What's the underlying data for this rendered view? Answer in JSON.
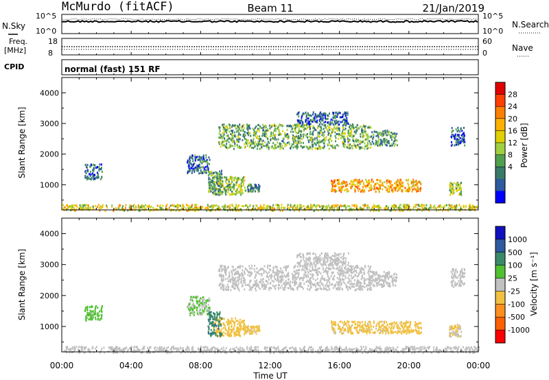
{
  "header": {
    "station": "McMurdo (fitACF)",
    "beam": "Beam 11",
    "date": "21/Jan/2019"
  },
  "nsky_panel": {
    "left_label": "N.Sky",
    "right_label": "N.Search",
    "left_ticks": [
      "10^5",
      "10^0"
    ],
    "right_ticks": [
      "10^5",
      "10^0"
    ]
  },
  "freq_panel": {
    "left_label_1": "Freq.",
    "left_label_2": "[MHz]",
    "left_ticks": [
      "18",
      "8"
    ],
    "right_label": "Nave",
    "right_ticks": [
      "60",
      "0"
    ]
  },
  "cpid_panel": {
    "label": "CPID",
    "text": "normal (fast) 151 RF"
  },
  "power_panel": {
    "ylabel": "Slant Range [km]",
    "yticks": [
      "4000",
      "3000",
      "2000",
      "1000"
    ],
    "colorbar_label": "Power [dB]",
    "colorbar_ticks": [
      "28",
      "24",
      "20",
      "16",
      "12",
      "8",
      "4"
    ],
    "colorbar_colors": [
      "#e00000",
      "#ff4000",
      "#ff8000",
      "#ffb000",
      "#e0d000",
      "#a0d040",
      "#50a050",
      "#3a7a6a",
      "#2e5aa0",
      "#0000ff"
    ]
  },
  "velocity_panel": {
    "ylabel": "Slant Range [km]",
    "yticks": [
      "4000",
      "3000",
      "2000",
      "1000"
    ],
    "colorbar_label": "Velocity [m s⁻¹]",
    "colorbar_ticks": [
      "1000",
      "500",
      "100",
      "25",
      "-25",
      "-100",
      "-500",
      "-1000"
    ],
    "colorbar_colors": [
      "#1010c0",
      "#2e5aa0",
      "#3a8a6a",
      "#50c030",
      "#c0c0c0",
      "#f0c040",
      "#ff9020",
      "#ff6000",
      "#ff0000"
    ]
  },
  "xaxis": {
    "label": "Time UT",
    "ticks": [
      "00:00",
      "04:00",
      "08:00",
      "12:00",
      "16:00",
      "20:00",
      "00:00"
    ]
  },
  "chart_data": {
    "type": "heatmap",
    "title": "McMurdo (fitACF) Beam 11 21/Jan/2019",
    "x_unit": "hours UT",
    "xlim": [
      0,
      24
    ],
    "ylim": [
      180,
      4500
    ],
    "xlabel": "Time UT",
    "ylabel": "Slant Range [km]",
    "power_range_dB": [
      0,
      30
    ],
    "velocity_range": [
      -1200,
      1200
    ],
    "scatter_regions": [
      {
        "t0": 8.7,
        "t1": 10.5,
        "r0": 700,
        "r1": 1300,
        "power": 13,
        "velocity": -300
      },
      {
        "t0": 10.5,
        "t1": 11.4,
        "r0": 800,
        "r1": 1050,
        "power": 8,
        "velocity": -200
      },
      {
        "t0": 15.5,
        "t1": 20.7,
        "r0": 800,
        "r1": 1200,
        "power": 20,
        "velocity": -200
      },
      {
        "t0": 22.3,
        "t1": 23.0,
        "r0": 700,
        "r1": 1100,
        "power": 14,
        "velocity": -150
      },
      {
        "t0": 9.0,
        "t1": 17.8,
        "r0": 2200,
        "r1": 3000,
        "power": 11,
        "velocity": 10
      },
      {
        "t0": 17.8,
        "t1": 19.3,
        "r0": 2300,
        "r1": 2800,
        "power": 9,
        "velocity": 0
      },
      {
        "t0": 13.5,
        "t1": 16.5,
        "r0": 3000,
        "r1": 3400,
        "power": 6,
        "velocity": -40
      },
      {
        "t0": 1.3,
        "t1": 2.3,
        "r0": 1200,
        "r1": 1700,
        "power": 6,
        "velocity": 200
      },
      {
        "t0": 7.2,
        "t1": 8.5,
        "r0": 1400,
        "r1": 2000,
        "power": 7,
        "velocity": 150
      },
      {
        "t0": 8.4,
        "t1": 9.2,
        "r0": 700,
        "r1": 1500,
        "power": 10,
        "velocity": 600
      },
      {
        "t0": 22.4,
        "t1": 23.2,
        "r0": 2300,
        "r1": 2900,
        "power": 6,
        "velocity": 20
      },
      {
        "t0": 0,
        "t1": 24,
        "r0": 180,
        "r1": 380,
        "power": 16,
        "velocity": 0
      }
    ]
  }
}
